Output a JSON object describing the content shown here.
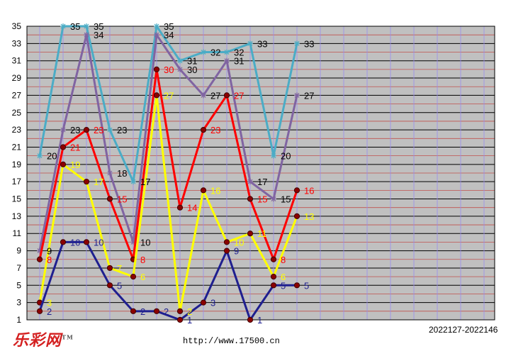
{
  "chart_data": {
    "type": "line",
    "ylim": [
      1,
      35
    ],
    "yticks": [
      "1",
      "3",
      "5",
      "7",
      "9",
      "11",
      "13",
      "15",
      "17",
      "19",
      "21",
      "23",
      "25",
      "27",
      "29",
      "31",
      "33",
      "35"
    ],
    "x": [
      1,
      2,
      3,
      4,
      5,
      6,
      7,
      8,
      9,
      10,
      11,
      12
    ],
    "series": [
      {
        "color": "#4BACC6",
        "label_color": "#000000",
        "marker": "star",
        "values": [
          20,
          35,
          35,
          23,
          17,
          35,
          31,
          32,
          32,
          33,
          20,
          33
        ]
      },
      {
        "color": "#8064A2",
        "label_color": "#000000",
        "marker": "star",
        "values": [
          9,
          23,
          34,
          18,
          10,
          34,
          30,
          27,
          31,
          17,
          15,
          27
        ]
      },
      {
        "color": "#FF0000",
        "label_color": "#FF0000",
        "marker": "dot",
        "values": [
          8,
          21,
          23,
          15,
          8,
          30,
          14,
          23,
          27,
          15,
          8,
          16
        ]
      },
      {
        "color": "#FFFF00",
        "label_color": "#FFFF00",
        "marker": "dot",
        "values": [
          3,
          19,
          17,
          7,
          6,
          27,
          2,
          16,
          10,
          11,
          6,
          13
        ]
      },
      {
        "color": "#1F1F8F",
        "label_color": "#1F1F8F",
        "marker": "dot",
        "values": [
          2,
          10,
          10,
          5,
          2,
          2,
          1,
          3,
          9,
          1,
          5,
          5
        ]
      }
    ]
  },
  "footer": {
    "logo": "乐彩网",
    "logo_tm": "TM",
    "url": "http://www.17500.cn",
    "range": "2022127-2022146"
  }
}
